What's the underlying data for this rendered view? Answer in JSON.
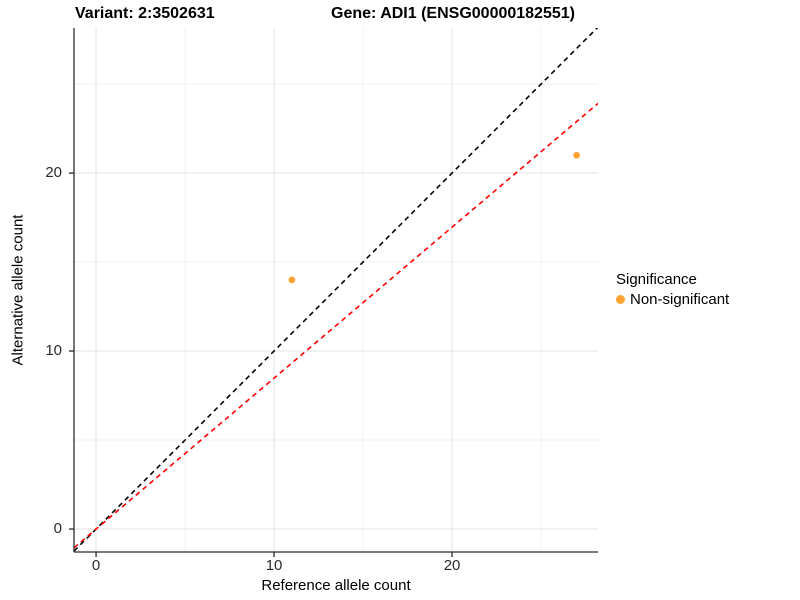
{
  "header": {
    "variant_title": "Variant: 2:3502631",
    "gene_title": "Gene: ADI1 (ENSG00000182551)"
  },
  "chart_data": {
    "type": "scatter",
    "title": "Variant: 2:3502631  Gene: ADI1 (ENSG00000182551)",
    "xlabel": "Reference allele count",
    "ylabel": "Alternative allele count",
    "xlim": [
      -1.24,
      28.2
    ],
    "ylim": [
      -1.29,
      28.15
    ],
    "x_ticks": [
      0,
      10,
      20
    ],
    "y_ticks": [
      0,
      10,
      20
    ],
    "x_minor_ticks": [
      5,
      15,
      25
    ],
    "y_minor_ticks": [
      5,
      15,
      25
    ],
    "grid": true,
    "points": [
      {
        "x": 11,
        "y": 14,
        "label": "Non-significant"
      },
      {
        "x": 27,
        "y": 21,
        "label": "Non-significant"
      }
    ],
    "point_color": "#FFA433",
    "point_radius": 3.4,
    "lines": [
      {
        "name": "identity-line",
        "slope": 1.0,
        "intercept": 0,
        "color": "#000000",
        "style": "dashed"
      },
      {
        "name": "fit-line",
        "slope": 0.848,
        "intercept": 0,
        "color": "#FF0000",
        "style": "dashed"
      }
    ],
    "legend": {
      "position": "right",
      "title": "Significance",
      "items": [
        {
          "label": "Non-significant",
          "color": "#FFA433"
        }
      ]
    },
    "colors": {
      "grid_major": "#e3e3e3",
      "grid_minor": "#f1f1f1",
      "axis_line": "#2b2b2b",
      "tick_label": "#2b2b2b",
      "background": "#ffffff"
    }
  }
}
